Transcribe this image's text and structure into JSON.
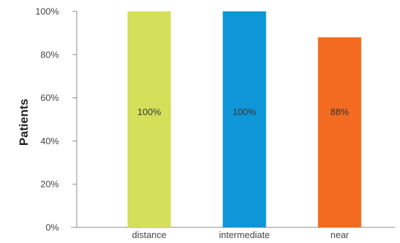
{
  "chart_data": {
    "type": "bar",
    "title": "",
    "xlabel": "",
    "ylabel": "Patients",
    "ylim": [
      0,
      100
    ],
    "yticks": [
      0,
      20,
      40,
      60,
      80,
      100
    ],
    "ytick_labels": [
      "0%",
      "20%",
      "40%",
      "60%",
      "80%",
      "100%"
    ],
    "categories": [
      "distance",
      "intermediate",
      "near"
    ],
    "values": [
      100,
      100,
      88
    ],
    "data_labels": [
      "100%",
      "100%",
      "88%"
    ],
    "colors": [
      "#d4df5a",
      "#0f96d8",
      "#f26b21"
    ],
    "grid": false,
    "legend": "none"
  }
}
